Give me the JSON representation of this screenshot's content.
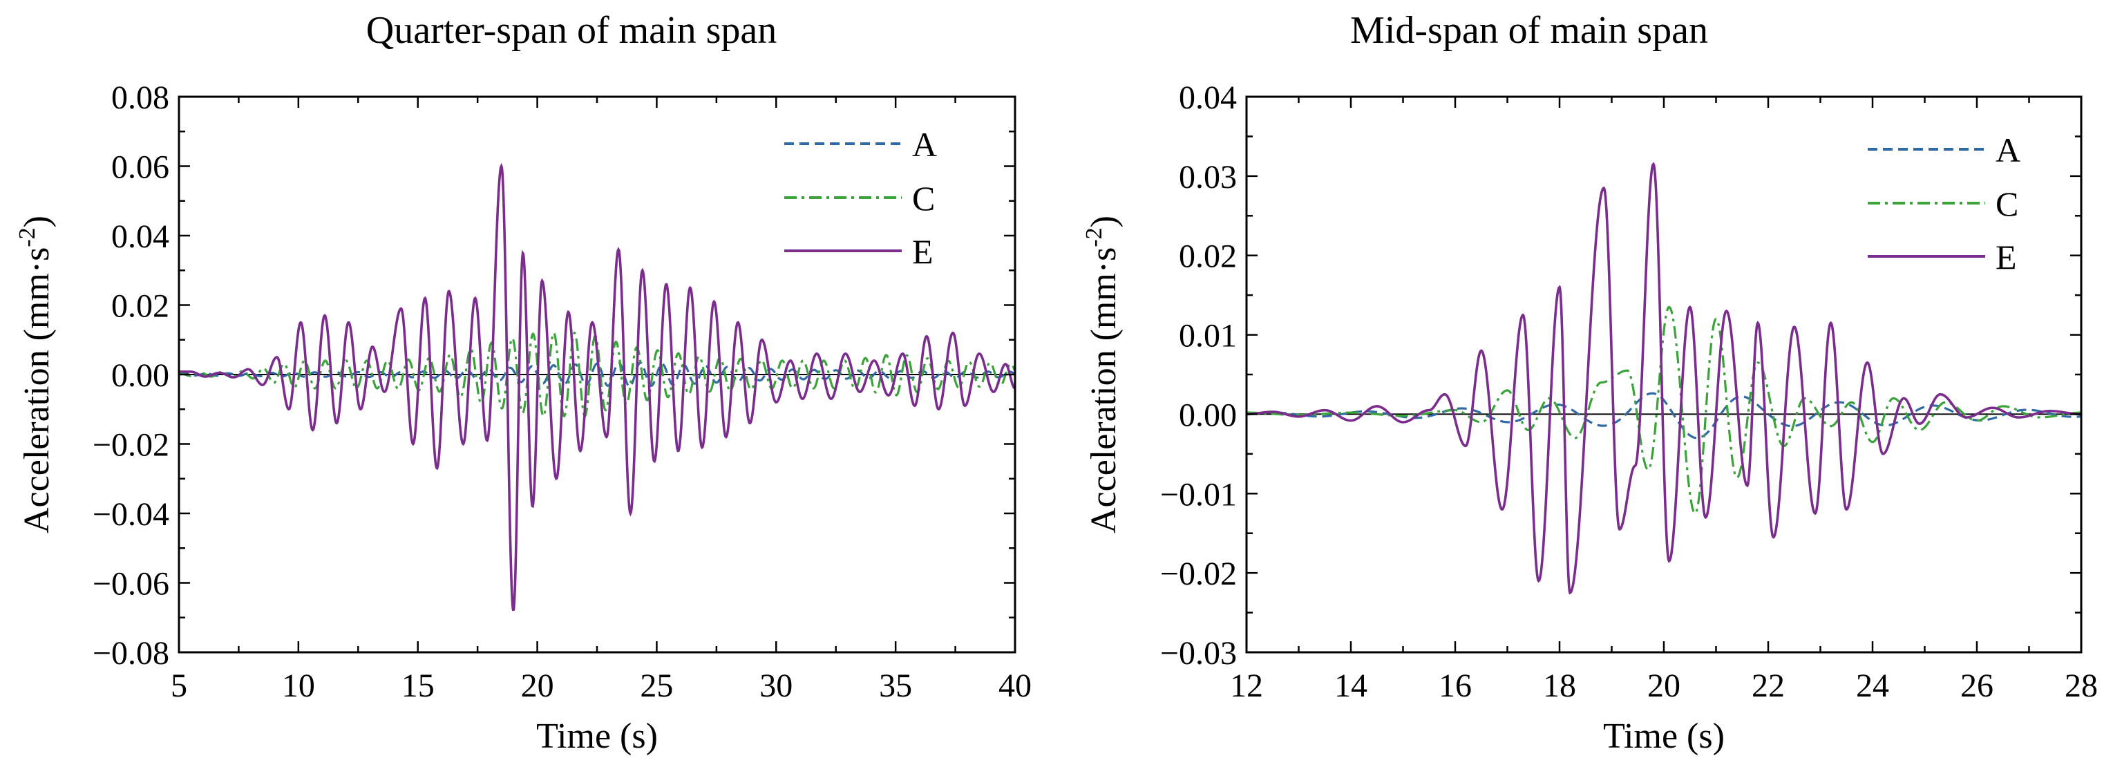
{
  "chart_data": [
    {
      "type": "line",
      "title": "Quarter-span of main span",
      "xlabel": "Time (s)",
      "ylabel_base": "Acceleration (mm·s",
      "ylabel_sup": "-2",
      "ylabel_close": ")",
      "xlim": [
        5,
        40
      ],
      "ylim": [
        -0.08,
        0.08
      ],
      "xticks": [
        5,
        10,
        15,
        20,
        25,
        30,
        35,
        40
      ],
      "xtick_labels": [
        "5",
        "10",
        "15",
        "20",
        "25",
        "30",
        "35",
        "40"
      ],
      "yticks": [
        -0.08,
        -0.06,
        -0.04,
        -0.02,
        0.0,
        0.02,
        0.04,
        0.06,
        0.08
      ],
      "ytick_labels": [
        "−0.08",
        "−0.06",
        "−0.04",
        "−0.02",
        "0.00",
        "0.02",
        "0.04",
        "0.06",
        "0.08"
      ],
      "series": [
        {
          "name": "A",
          "color": "#2f6aa3",
          "dash": "dashed",
          "freq": 1.1,
          "env": [
            [
              5,
              0.0002
            ],
            [
              10,
              0.0006
            ],
            [
              15,
              0.0008
            ],
            [
              18,
              0.0015
            ],
            [
              20,
              0.0025
            ],
            [
              22,
              0.003
            ],
            [
              24,
              0.0035
            ],
            [
              27,
              0.0025
            ],
            [
              30,
              0.0015
            ],
            [
              35,
              0.001
            ],
            [
              40,
              0.0008
            ]
          ]
        },
        {
          "name": "C",
          "color": "#3aa33a",
          "dash": "dashdot",
          "freq": 1.15,
          "env": [
            [
              5,
              0.0003
            ],
            [
              8,
              0.001
            ],
            [
              10,
              0.004
            ],
            [
              14,
              0.004
            ],
            [
              16,
              0.005
            ],
            [
              18,
              0.009
            ],
            [
              20,
              0.012
            ],
            [
              22,
              0.012
            ],
            [
              24,
              0.008
            ],
            [
              27,
              0.005
            ],
            [
              30,
              0.004
            ],
            [
              33,
              0.004
            ],
            [
              35,
              0.006
            ],
            [
              37,
              0.004
            ],
            [
              40,
              0.003
            ]
          ]
        },
        {
          "name": "E",
          "color": "#7b2d8e",
          "dash": "solid",
          "peaks": [
            [
              5.5,
              0.0008
            ],
            [
              6.1,
              -0.0006
            ],
            [
              6.7,
              0.0005
            ],
            [
              7.3,
              -0.0008
            ],
            [
              7.9,
              0.0015
            ],
            [
              8.5,
              -0.003
            ],
            [
              9.1,
              0.005
            ],
            [
              9.6,
              -0.01
            ],
            [
              10.1,
              0.015
            ],
            [
              10.6,
              -0.016
            ],
            [
              11.1,
              0.017
            ],
            [
              11.6,
              -0.014
            ],
            [
              12.1,
              0.015
            ],
            [
              12.6,
              -0.01
            ],
            [
              13.1,
              0.008
            ],
            [
              13.6,
              -0.005
            ],
            [
              14.3,
              0.019
            ],
            [
              14.8,
              -0.02
            ],
            [
              15.3,
              0.022
            ],
            [
              15.8,
              -0.027
            ],
            [
              16.3,
              0.024
            ],
            [
              16.9,
              -0.02
            ],
            [
              17.4,
              0.022
            ],
            [
              17.9,
              -0.019
            ],
            [
              18.5,
              0.06
            ],
            [
              19.0,
              -0.068
            ],
            [
              19.4,
              0.035
            ],
            [
              19.8,
              -0.038
            ],
            [
              20.2,
              0.027
            ],
            [
              20.8,
              -0.03
            ],
            [
              21.3,
              0.018
            ],
            [
              21.8,
              -0.022
            ],
            [
              22.3,
              0.015
            ],
            [
              22.9,
              -0.018
            ],
            [
              23.4,
              0.036
            ],
            [
              23.9,
              -0.04
            ],
            [
              24.4,
              0.03
            ],
            [
              24.9,
              -0.025
            ],
            [
              25.4,
              0.026
            ],
            [
              25.9,
              -0.022
            ],
            [
              26.4,
              0.025
            ],
            [
              26.9,
              -0.021
            ],
            [
              27.4,
              0.021
            ],
            [
              27.9,
              -0.018
            ],
            [
              28.4,
              0.015
            ],
            [
              28.9,
              -0.014
            ],
            [
              29.4,
              0.01
            ],
            [
              30.0,
              -0.008
            ],
            [
              30.6,
              0.004
            ],
            [
              31.1,
              -0.007
            ],
            [
              31.7,
              0.006
            ],
            [
              32.3,
              -0.007
            ],
            [
              32.9,
              0.006
            ],
            [
              33.5,
              -0.005
            ],
            [
              34.1,
              0.004
            ],
            [
              34.7,
              -0.006
            ],
            [
              35.3,
              0.006
            ],
            [
              35.8,
              -0.009
            ],
            [
              36.3,
              0.011
            ],
            [
              36.8,
              -0.01
            ],
            [
              37.4,
              0.012
            ],
            [
              37.9,
              -0.009
            ],
            [
              38.5,
              0.006
            ],
            [
              39.1,
              -0.005
            ],
            [
              39.6,
              0.003
            ],
            [
              40.0,
              -0.004
            ]
          ]
        }
      ],
      "legend": {
        "position": "top-right",
        "entries": [
          "A",
          "C",
          "E"
        ]
      }
    },
    {
      "type": "line",
      "title": "Mid-span of main span",
      "xlabel": "Time (s)",
      "ylabel_base": "Acceleration (mm·s",
      "ylabel_sup": "-2",
      "ylabel_close": ")",
      "xlim": [
        12,
        28
      ],
      "ylim": [
        -0.03,
        0.04
      ],
      "xticks": [
        12,
        14,
        16,
        18,
        20,
        22,
        24,
        26,
        28
      ],
      "xtick_labels": [
        "12",
        "14",
        "16",
        "18",
        "20",
        "22",
        "24",
        "26",
        "28"
      ],
      "yticks": [
        -0.03,
        -0.02,
        -0.01,
        0.0,
        0.01,
        0.02,
        0.03,
        0.04
      ],
      "ytick_labels": [
        "−0.03",
        "−0.02",
        "−0.01",
        "0.00",
        "0.01",
        "0.02",
        "0.03",
        "0.04"
      ],
      "series": [
        {
          "name": "A",
          "color": "#2f6aa3",
          "dash": "dashed",
          "freq": 0.55,
          "env": [
            [
              12,
              0.0002
            ],
            [
              15,
              0.0004
            ],
            [
              17,
              0.001
            ],
            [
              19,
              0.0015
            ],
            [
              20,
              0.003
            ],
            [
              21,
              0.003
            ],
            [
              22,
              0.0015
            ],
            [
              24,
              0.0015
            ],
            [
              26,
              0.0008
            ],
            [
              28,
              0.0003
            ]
          ]
        },
        {
          "name": "C",
          "color": "#3aa33a",
          "dash": "dashdot",
          "peaks": [
            [
              12,
              0.0002
            ],
            [
              13,
              -0.0001
            ],
            [
              14,
              0.0002
            ],
            [
              15,
              -0.0002
            ],
            [
              16,
              0.0005
            ],
            [
              16.5,
              -0.001
            ],
            [
              17.0,
              0.003
            ],
            [
              17.4,
              -0.002
            ],
            [
              17.8,
              0.002
            ],
            [
              18.3,
              -0.003
            ],
            [
              18.8,
              0.004
            ],
            [
              19.3,
              0.0055
            ],
            [
              19.7,
              -0.007
            ],
            [
              20.1,
              0.0135
            ],
            [
              20.6,
              -0.0125
            ],
            [
              21.0,
              0.012
            ],
            [
              21.4,
              -0.008
            ],
            [
              21.8,
              0.0065
            ],
            [
              22.3,
              -0.004
            ],
            [
              22.7,
              0.002
            ],
            [
              23.2,
              -0.0015
            ],
            [
              23.6,
              0.0015
            ],
            [
              24.0,
              -0.0035
            ],
            [
              24.4,
              0.002
            ],
            [
              24.9,
              -0.002
            ],
            [
              25.4,
              0.0015
            ],
            [
              26.0,
              -0.0008
            ],
            [
              26.5,
              0.001
            ],
            [
              27.2,
              -0.0004
            ],
            [
              28,
              0.0002
            ]
          ]
        },
        {
          "name": "E",
          "color": "#7b2d8e",
          "dash": "solid",
          "peaks": [
            [
              12,
              0.0
            ],
            [
              12.5,
              0.0003
            ],
            [
              13,
              -0.0003
            ],
            [
              13.5,
              0.0005
            ],
            [
              14,
              -0.0008
            ],
            [
              14.5,
              0.001
            ],
            [
              15,
              -0.001
            ],
            [
              15.5,
              0.0005
            ],
            [
              15.8,
              0.0025
            ],
            [
              16.2,
              -0.004
            ],
            [
              16.5,
              0.008
            ],
            [
              16.9,
              -0.012
            ],
            [
              17.3,
              0.0125
            ],
            [
              17.6,
              -0.021
            ],
            [
              18.0,
              0.016
            ],
            [
              18.2,
              -0.0225
            ],
            [
              18.85,
              0.0285
            ],
            [
              19.15,
              -0.0145
            ],
            [
              19.45,
              -0.0065
            ],
            [
              19.8,
              0.0315
            ],
            [
              20.1,
              -0.0185
            ],
            [
              20.5,
              0.0135
            ],
            [
              20.8,
              -0.013
            ],
            [
              21.2,
              0.013
            ],
            [
              21.6,
              -0.009
            ],
            [
              21.8,
              0.0115
            ],
            [
              22.1,
              -0.0155
            ],
            [
              22.5,
              0.011
            ],
            [
              22.9,
              -0.0125
            ],
            [
              23.2,
              0.0115
            ],
            [
              23.5,
              -0.012
            ],
            [
              23.9,
              0.0065
            ],
            [
              24.2,
              -0.005
            ],
            [
              24.6,
              0.002
            ],
            [
              24.9,
              -0.0012
            ],
            [
              25.3,
              0.0025
            ],
            [
              25.8,
              -0.0004
            ],
            [
              26.3,
              0.0008
            ],
            [
              26.8,
              -0.0004
            ],
            [
              27.4,
              0.0004
            ],
            [
              28,
              0.0
            ]
          ]
        }
      ],
      "legend": {
        "position": "top-right",
        "entries": [
          "A",
          "C",
          "E"
        ]
      }
    }
  ]
}
